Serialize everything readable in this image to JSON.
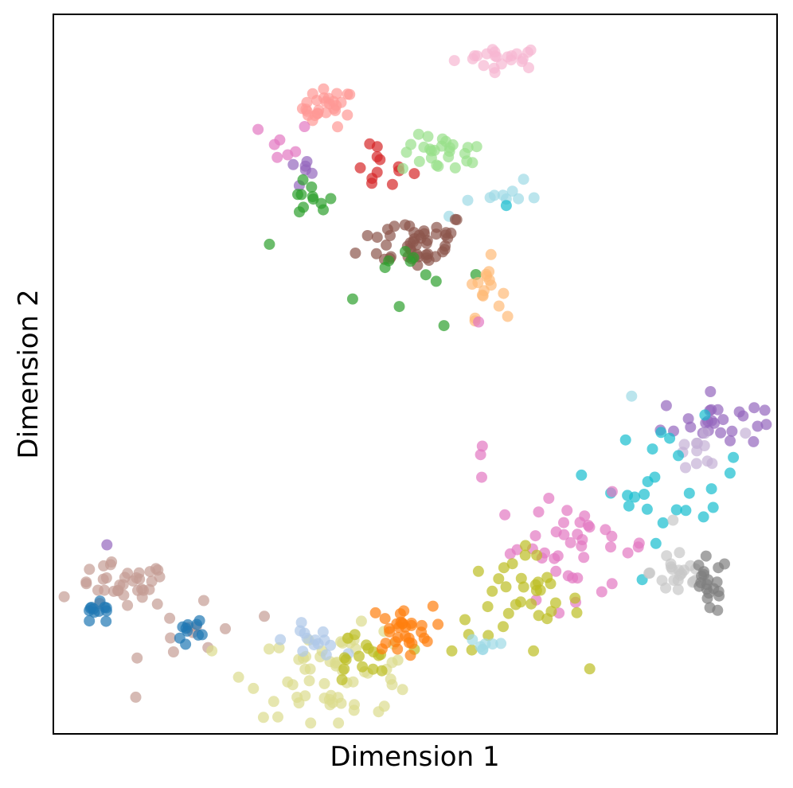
{
  "chart_data": {
    "type": "scatter",
    "title": "",
    "xlabel": "Dimension 1",
    "ylabel": "Dimension 2",
    "xlim": [
      0,
      100
    ],
    "ylim": [
      0,
      100
    ],
    "ticks": false,
    "grid": false,
    "legend": "none",
    "marker_alpha": 0.7,
    "clusters": [
      {
        "color": "#f7b6d2",
        "center": [
          62,
          94
        ],
        "spread": [
          3.2,
          0.8
        ],
        "n": 22
      },
      {
        "color": "#ff9896",
        "center": [
          38,
          87
        ],
        "spread": [
          1.8,
          1.3
        ],
        "n": 28
      },
      {
        "color": "#e377c2",
        "center": [
          32,
          82
        ],
        "spread": [
          1.8,
          1.6
        ],
        "n": 7
      },
      {
        "color": "#9467bd",
        "center": [
          34,
          78
        ],
        "spread": [
          1.2,
          1.2
        ],
        "n": 6
      },
      {
        "color": "#2ca02c",
        "center": [
          35.5,
          74
        ],
        "spread": [
          1.6,
          1.2
        ],
        "n": 11
      },
      {
        "color": "#d62728",
        "center": [
          45,
          79
        ],
        "spread": [
          2.3,
          2.0
        ],
        "n": 12
      },
      {
        "color": "#98df8a",
        "center": [
          54,
          80.5
        ],
        "spread": [
          3.0,
          1.3
        ],
        "n": 26
      },
      {
        "color": "#9edae5",
        "center": [
          60,
          75
        ],
        "spread": [
          3.4,
          2.2
        ],
        "n": 10
      },
      {
        "color": "#17becf",
        "center": [
          63.5,
          73
        ],
        "spread": [
          0.4,
          0.4
        ],
        "n": 1
      },
      {
        "color": "#8c564b",
        "center": [
          50,
          68.5
        ],
        "spread": [
          3.8,
          2.0
        ],
        "n": 48
      },
      {
        "color": "#2ca02c",
        "center": [
          49,
          64
        ],
        "spread": [
          5.5,
          3.5
        ],
        "n": 12
      },
      {
        "color": "#ffbb78",
        "center": [
          59.5,
          62
        ],
        "spread": [
          1.2,
          2.0
        ],
        "n": 16
      },
      {
        "color": "#e377c2",
        "center": [
          59,
          57
        ],
        "spread": [
          0.4,
          0.4
        ],
        "n": 1
      },
      {
        "color": "#9467bd",
        "center": [
          91,
          43.5
        ],
        "spread": [
          3.5,
          1.8
        ],
        "n": 26
      },
      {
        "color": "#c5b0d5",
        "center": [
          89.5,
          39
        ],
        "spread": [
          3.0,
          1.6
        ],
        "n": 12
      },
      {
        "color": "#17becf",
        "center": [
          86,
          35
        ],
        "spread": [
          4.5,
          4.0
        ],
        "n": 26
      },
      {
        "color": "#9edae5",
        "center": [
          79.5,
          47
        ],
        "spread": [
          0.4,
          0.4
        ],
        "n": 1
      },
      {
        "color": "#e377c2",
        "center": [
          72,
          26
        ],
        "spread": [
          5.5,
          3.5
        ],
        "n": 40
      },
      {
        "color": "#e377c2",
        "center": [
          59,
          40
        ],
        "spread": [
          0.6,
          2.5
        ],
        "n": 3
      },
      {
        "color": "#bcbd22",
        "center": [
          64,
          18
        ],
        "spread": [
          4.5,
          3.5
        ],
        "n": 36
      },
      {
        "color": "#9edae5",
        "center": [
          60,
          12.5
        ],
        "spread": [
          1.5,
          0.7
        ],
        "n": 7
      },
      {
        "color": "#c7c7c7",
        "center": [
          86.5,
          22.5
        ],
        "spread": [
          2.0,
          2.2
        ],
        "n": 22
      },
      {
        "color": "#7f7f7f",
        "center": [
          90.5,
          20.5
        ],
        "spread": [
          1.4,
          2.0
        ],
        "n": 20
      },
      {
        "color": "#c49c94",
        "center": [
          9.5,
          20.5
        ],
        "spread": [
          3.3,
          1.6
        ],
        "n": 36
      },
      {
        "color": "#1f77b4",
        "center": [
          6,
          16.5
        ],
        "spread": [
          1.4,
          0.8
        ],
        "n": 12
      },
      {
        "color": "#9467bd",
        "center": [
          7.5,
          26.5
        ],
        "spread": [
          0.4,
          0.4
        ],
        "n": 1
      },
      {
        "color": "#c49c94",
        "center": [
          20,
          14
        ],
        "spread": [
          3.8,
          3.5
        ],
        "n": 12
      },
      {
        "color": "#1f77b4",
        "center": [
          20,
          14.5
        ],
        "spread": [
          1.6,
          1.2
        ],
        "n": 10
      },
      {
        "color": "#dbdb8d",
        "center": [
          39,
          8.5
        ],
        "spread": [
          6.0,
          3.0
        ],
        "n": 60
      },
      {
        "color": "#aec7e8",
        "center": [
          36,
          13
        ],
        "spread": [
          2.0,
          1.1
        ],
        "n": 14
      },
      {
        "color": "#bcbd22",
        "center": [
          42,
          10
        ],
        "spread": [
          2.5,
          2.2
        ],
        "n": 16
      },
      {
        "color": "#ff7f0e",
        "center": [
          48,
          14.5
        ],
        "spread": [
          2.2,
          1.6
        ],
        "n": 30
      }
    ]
  }
}
